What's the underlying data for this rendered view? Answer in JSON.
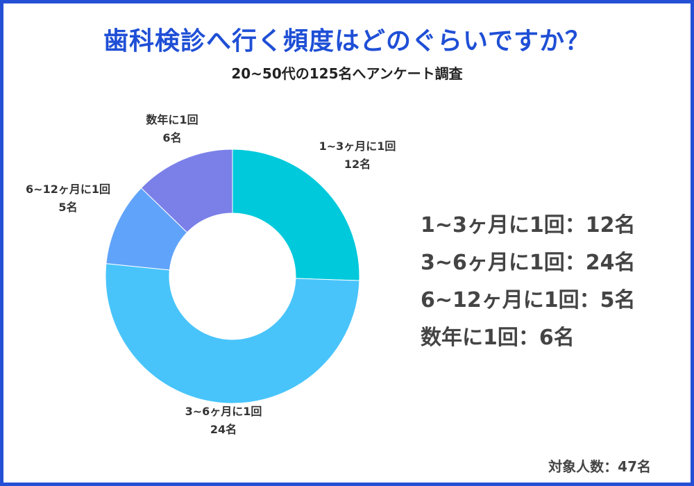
{
  "title": "歯科検診へ行く頻度はどのぐらいですか？",
  "subtitle": "20~50代の125名へアンケート調査",
  "footer": "対象人数：47名",
  "chart_data": {
    "type": "pie",
    "donut": true,
    "categories": [
      "1~3ヶ月に1回",
      "3~6ヶ月に1回",
      "6~12ヶ月に1回",
      "数年に1回"
    ],
    "values": [
      12,
      24,
      5,
      6
    ],
    "value_labels": [
      "12名",
      "24名",
      "5名",
      "6名"
    ],
    "colors": [
      "#00c9db",
      "#48c4fb",
      "#60a3fa",
      "#7b80e8"
    ],
    "start_angle_deg": 0,
    "direction": "clockwise"
  },
  "legend": [
    "1~3ヶ月に1回：12名",
    "3~6ヶ月に1回：24名",
    "6~12ヶ月に1回：5名",
    "数年に1回：6名"
  ]
}
